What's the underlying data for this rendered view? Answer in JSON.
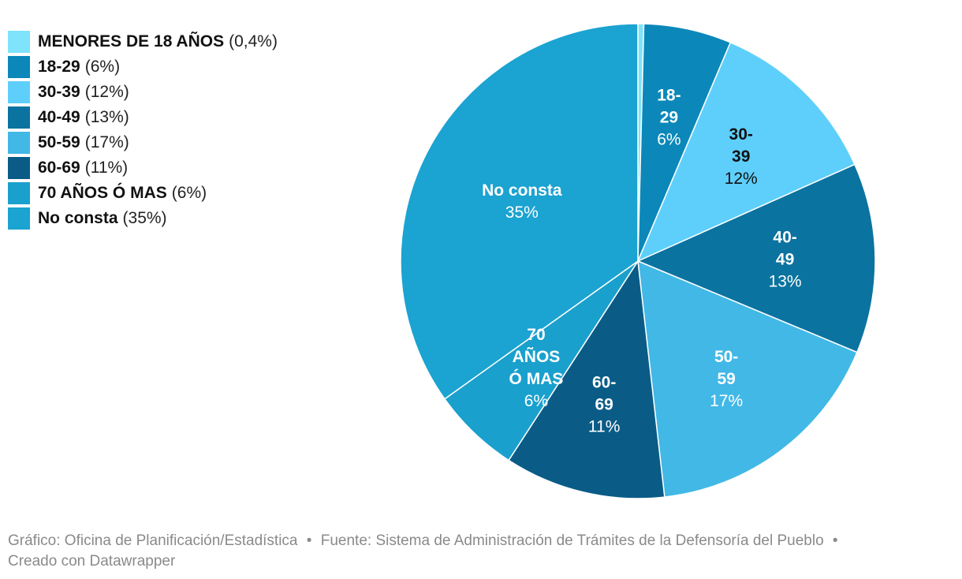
{
  "chart_data": {
    "type": "pie",
    "categories": [
      "MENORES DE 18 AÑOS",
      "18-29",
      "30-39",
      "40-49",
      "50-59",
      "60-69",
      "70 AÑOS Ó MAS",
      "No consta"
    ],
    "values": [
      0.4,
      6,
      12,
      13,
      17,
      11,
      6,
      35
    ],
    "value_labels": [
      "(0,4%)",
      "(6%)",
      "(12%)",
      "(13%)",
      "(17%)",
      "(11%)",
      "(6%)",
      "(35%)"
    ],
    "slice_labels": [
      {
        "lines": [],
        "pct": ""
      },
      {
        "lines": [
          "18-",
          "29"
        ],
        "pct": "6%"
      },
      {
        "lines": [
          "30-",
          "39"
        ],
        "pct": "12%"
      },
      {
        "lines": [
          "40-",
          "49"
        ],
        "pct": "13%"
      },
      {
        "lines": [
          "50-",
          "59"
        ],
        "pct": "17%"
      },
      {
        "lines": [
          "60-",
          "69"
        ],
        "pct": "11%"
      },
      {
        "lines": [
          "70",
          "AÑOS",
          "Ó MAS"
        ],
        "pct": "6%"
      },
      {
        "lines": [
          "No consta"
        ],
        "pct": "35%"
      }
    ],
    "colors": [
      "#7ee3fb",
      "#0b88b9",
      "#5ecffb",
      "#0b73a0",
      "#42b8e6",
      "#0a5c87",
      "#1aa0cd",
      "#1ba3d1"
    ],
    "label_colors": [
      "#ffffff",
      "#ffffff",
      "#111111",
      "#ffffff",
      "#ffffff",
      "#ffffff",
      "#ffffff",
      "#ffffff"
    ],
    "legend_placement": "top-left"
  },
  "footer": {
    "grafico": "Gráfico: Oficina de Planificación/Estadística",
    "separator": "•",
    "fuente": "Fuente: Sistema de Administración de Trámites de la Defensoría del Pueblo",
    "creado": "Creado con Datawrapper"
  }
}
